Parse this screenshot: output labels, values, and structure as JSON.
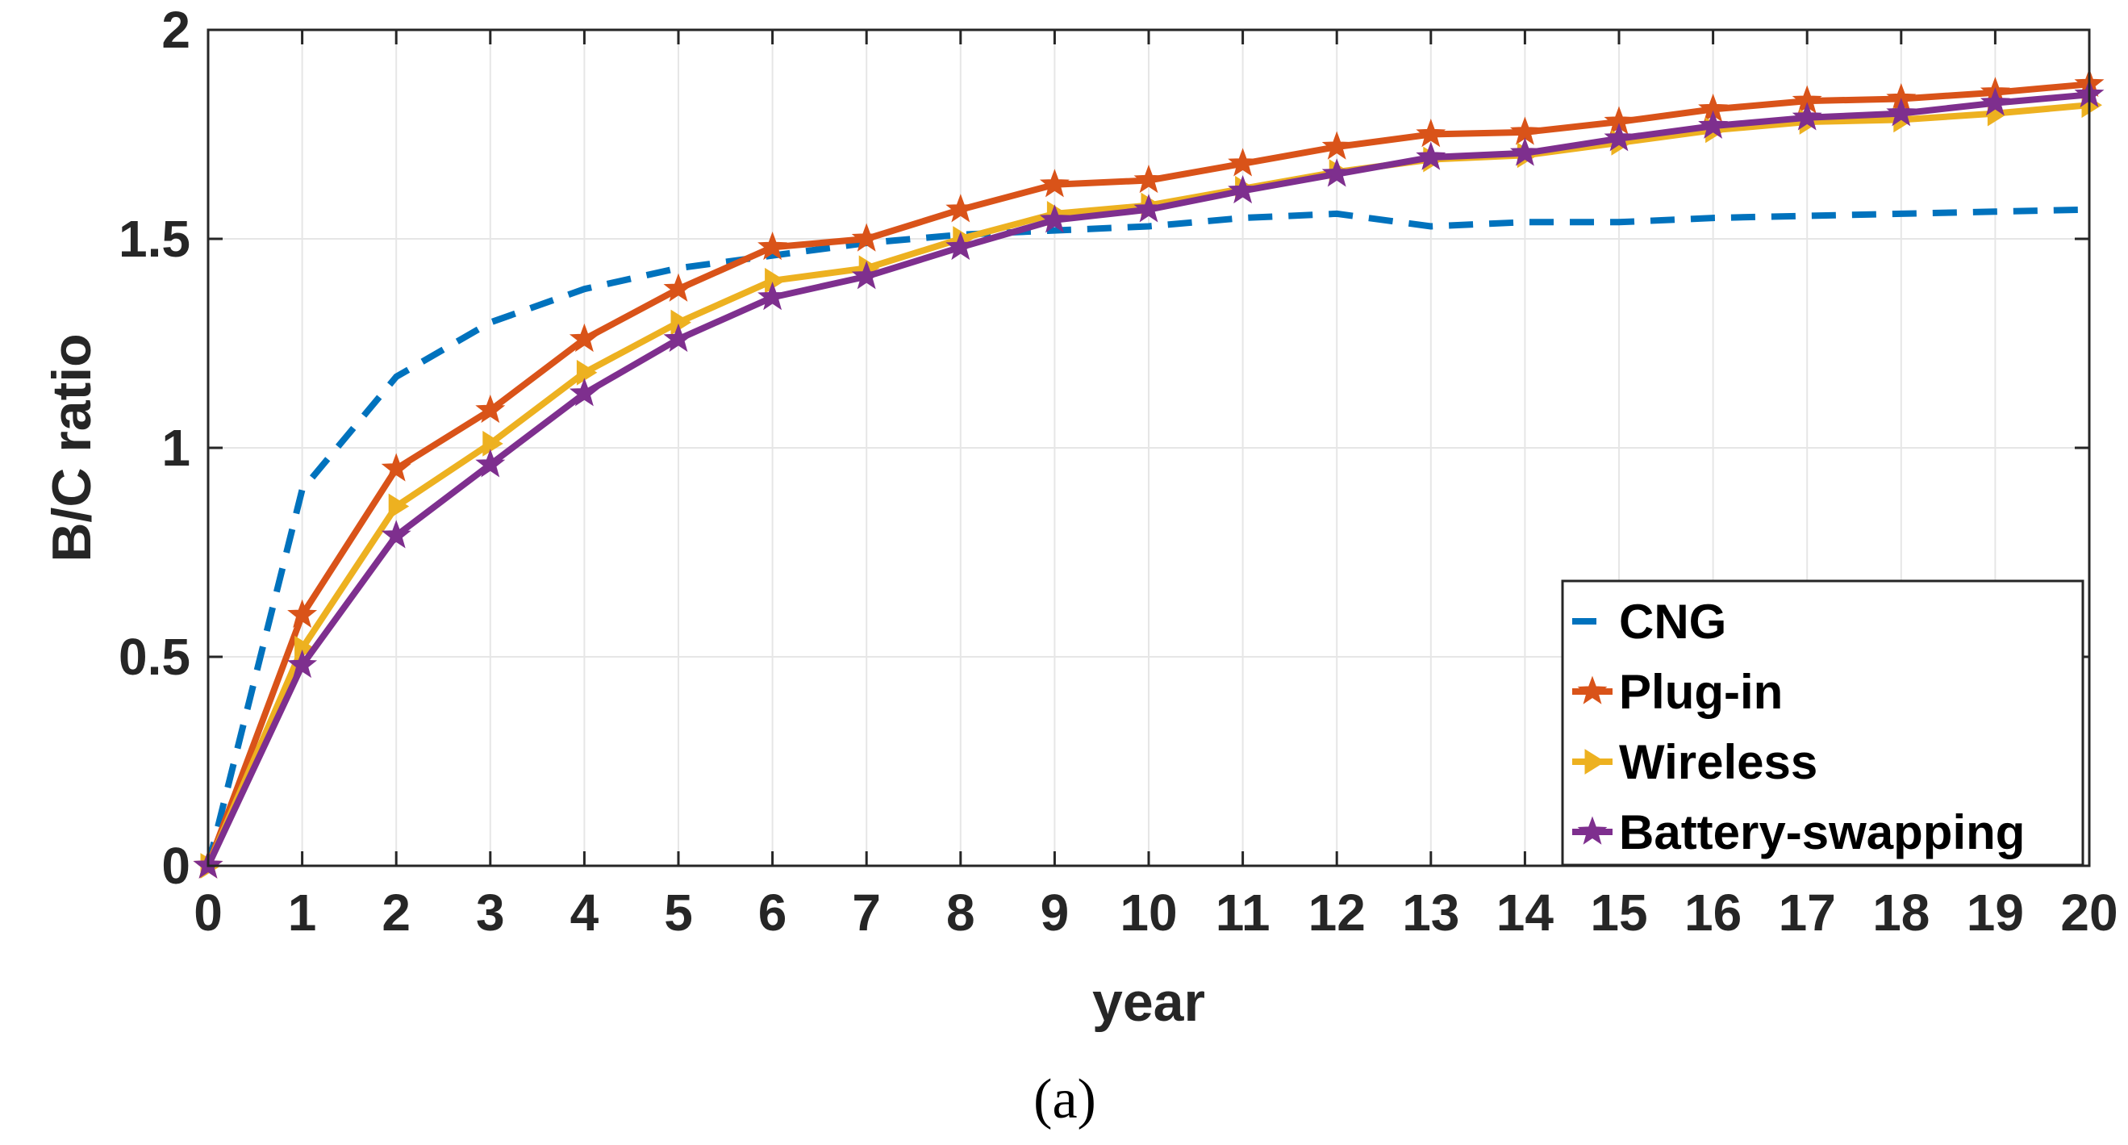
{
  "chart_data": {
    "type": "line",
    "title": "",
    "xlabel": "year",
    "ylabel": "B/C ratio",
    "caption": "(a)",
    "xlim": [
      0,
      20
    ],
    "ylim": [
      0,
      2
    ],
    "grid": true,
    "legend_position": "bottom-right",
    "x": [
      0,
      1,
      2,
      3,
      4,
      5,
      6,
      7,
      8,
      9,
      10,
      11,
      12,
      13,
      14,
      15,
      16,
      17,
      18,
      19,
      20
    ],
    "x_ticks": [
      "0",
      "1",
      "2",
      "3",
      "4",
      "5",
      "6",
      "7",
      "8",
      "9",
      "10",
      "11",
      "12",
      "13",
      "14",
      "15",
      "16",
      "17",
      "18",
      "19",
      "20"
    ],
    "y_ticks": [
      {
        "value": 0,
        "label": "0"
      },
      {
        "value": 0.5,
        "label": "0.5"
      },
      {
        "value": 1,
        "label": "1"
      },
      {
        "value": 1.5,
        "label": "1.5"
      },
      {
        "value": 2,
        "label": "2"
      }
    ],
    "series": [
      {
        "name": "CNG",
        "color": "#0072BD",
        "style": "dashed",
        "marker": "none",
        "values": [
          0,
          0.9,
          1.17,
          1.3,
          1.38,
          1.43,
          1.46,
          1.49,
          1.51,
          1.52,
          1.53,
          1.55,
          1.56,
          1.53,
          1.54,
          1.54,
          1.55,
          1.555,
          1.56,
          1.565,
          1.57
        ]
      },
      {
        "name": "Plug-in",
        "color": "#D95319",
        "style": "solid",
        "marker": "star",
        "values": [
          0,
          0.6,
          0.95,
          1.09,
          1.26,
          1.38,
          1.48,
          1.5,
          1.57,
          1.63,
          1.64,
          1.68,
          1.72,
          1.75,
          1.755,
          1.78,
          1.81,
          1.83,
          1.835,
          1.85,
          1.87
        ]
      },
      {
        "name": "Wireless",
        "color": "#EDB120",
        "style": "solid",
        "marker": "triangle-right",
        "values": [
          0,
          0.52,
          0.86,
          1.01,
          1.18,
          1.3,
          1.4,
          1.43,
          1.5,
          1.56,
          1.58,
          1.62,
          1.66,
          1.69,
          1.7,
          1.73,
          1.76,
          1.78,
          1.785,
          1.8,
          1.82
        ]
      },
      {
        "name": "Battery-swapping",
        "color": "#7E2F8E",
        "style": "solid",
        "marker": "star",
        "values": [
          0,
          0.48,
          0.79,
          0.96,
          1.13,
          1.26,
          1.36,
          1.41,
          1.48,
          1.545,
          1.57,
          1.615,
          1.655,
          1.695,
          1.705,
          1.74,
          1.77,
          1.79,
          1.8,
          1.825,
          1.845
        ]
      }
    ]
  }
}
